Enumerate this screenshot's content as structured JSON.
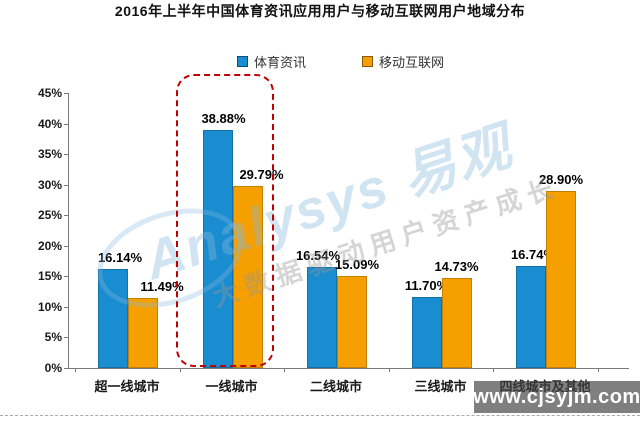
{
  "title": "2016年上半年中国体育资讯应用用户与移动互联网用户地域分布",
  "legend": {
    "series1_label": "体育资讯",
    "series2_label": "移动互联网"
  },
  "colors": {
    "series1": "#1a8dd1",
    "series2": "#f5a000",
    "highlight_box": "#c00000"
  },
  "watermark": {
    "brand": "Analysys 易观",
    "slogan": "大数据驱动用户资产成长",
    "site": "www.cjsyjm.com"
  },
  "chart_data": {
    "type": "bar",
    "categories": [
      "超一线城市",
      "一线城市",
      "二线城市",
      "三线城市",
      "四线城市及其他"
    ],
    "series": [
      {
        "name": "体育资讯",
        "color": "#1a8dd1",
        "values": [
          16.14,
          38.88,
          16.54,
          11.7,
          16.74
        ]
      },
      {
        "name": "移动互联网",
        "color": "#f5a000",
        "values": [
          11.49,
          29.79,
          15.09,
          14.73,
          28.9
        ]
      }
    ],
    "data_labels": [
      [
        "16.14%",
        "38.88%",
        "16.54%",
        "11.70%",
        "16.74%"
      ],
      [
        "11.49%",
        "29.79%",
        "15.09%",
        "14.73%",
        "28.90%"
      ]
    ],
    "title": "2016年上半年中国体育资讯应用用户与移动互联网用户地域分布",
    "xlabel": "",
    "ylabel": "",
    "yticks": [
      "0%",
      "5%",
      "10%",
      "15%",
      "20%",
      "25%",
      "30%",
      "35%",
      "40%",
      "45%"
    ],
    "ylim": [
      0,
      45
    ],
    "grid": false,
    "legend_position": "top",
    "highlighted_category": "一线城市"
  }
}
